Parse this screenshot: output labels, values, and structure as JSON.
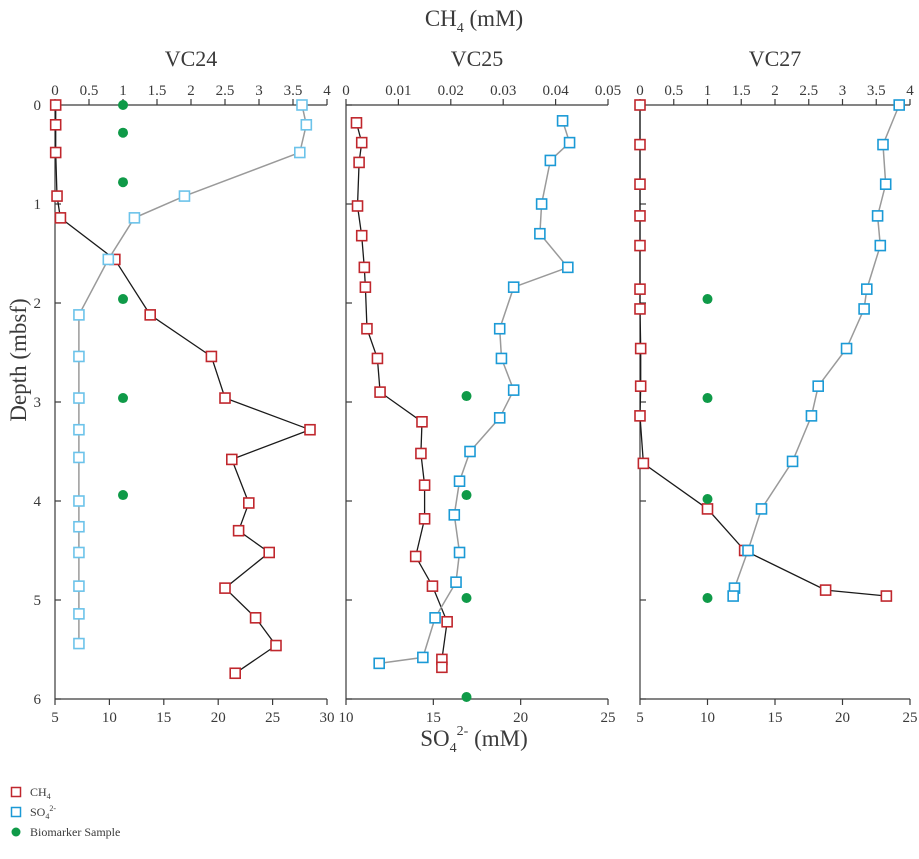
{
  "top_axis_title": "CH4 (mM)",
  "bottom_axis_title": "SO42- (mM)",
  "y_axis_title": "Depth (mbsf)",
  "legend": [
    {
      "key": "ch4",
      "label": "CH4"
    },
    {
      "key": "so4",
      "label": "SO42-"
    },
    {
      "key": "bio",
      "label": "Biomarker Sample"
    }
  ],
  "colors": {
    "ch4": "#c0272d",
    "so4_vc24": "#6cc3ea",
    "so4": "#1b9ad6",
    "bio": "#0f9a48",
    "ch4_line": "#1a1a1a",
    "so4_line": "#9a9a9a",
    "axis": "#3a3a3a"
  },
  "chart_data": [
    {
      "type": "scatter",
      "title": "VC24",
      "ylabel": "Depth (mbsf)",
      "ylim": [
        0,
        6
      ],
      "y_ticks": [
        0,
        1,
        2,
        3,
        4,
        5,
        6
      ],
      "y_reversed": true,
      "ch4_axis": {
        "range": [
          0,
          4
        ],
        "ticks": [
          0,
          0.5,
          1,
          1.5,
          2,
          2.5,
          3,
          3.5,
          4
        ],
        "tick_labels": [
          "0",
          "0.5",
          "1",
          "1.5",
          "2",
          "2.5",
          "3",
          "3.5",
          "4"
        ]
      },
      "so4_axis": {
        "range": [
          5,
          30
        ],
        "ticks": [
          5,
          10,
          15,
          20,
          25,
          30
        ],
        "tick_labels": [
          "5",
          "10",
          "15",
          "20",
          "25",
          "30"
        ]
      },
      "series": [
        {
          "name": "CH4",
          "axis": "ch4",
          "points": [
            [
              0.01,
              0.0
            ],
            [
              0.01,
              0.2
            ],
            [
              0.01,
              0.48
            ],
            [
              0.03,
              0.92
            ],
            [
              0.08,
              1.14
            ],
            [
              0.88,
              1.56
            ],
            [
              1.4,
              2.12
            ],
            [
              2.3,
              2.54
            ],
            [
              2.5,
              2.96
            ],
            [
              3.75,
              3.28
            ],
            [
              2.6,
              3.58
            ],
            [
              2.85,
              4.02
            ],
            [
              2.7,
              4.3
            ],
            [
              3.15,
              4.52
            ],
            [
              2.5,
              4.88
            ],
            [
              2.95,
              5.18
            ],
            [
              3.25,
              5.46
            ],
            [
              2.65,
              5.74
            ]
          ]
        },
        {
          "name": "SO42-",
          "axis": "so4",
          "points": [
            [
              27.7,
              0.0
            ],
            [
              28.1,
              0.2
            ],
            [
              27.5,
              0.48
            ],
            [
              16.9,
              0.92
            ],
            [
              12.3,
              1.14
            ],
            [
              9.9,
              1.56
            ],
            [
              7.2,
              2.12
            ],
            [
              7.2,
              2.54
            ],
            [
              7.2,
              2.96
            ],
            [
              7.2,
              3.28
            ],
            [
              7.2,
              3.56
            ],
            [
              7.2,
              4.0
            ],
            [
              7.2,
              4.26
            ],
            [
              7.2,
              4.52
            ],
            [
              7.2,
              4.86
            ],
            [
              7.2,
              5.14
            ],
            [
              7.2,
              5.44
            ]
          ]
        },
        {
          "name": "Biomarker Sample",
          "axis": "ch4",
          "points": [
            [
              1.0,
              0.0
            ],
            [
              1.0,
              0.28
            ],
            [
              1.0,
              0.78
            ],
            [
              1.0,
              1.96
            ],
            [
              1.0,
              2.96
            ],
            [
              1.0,
              3.94
            ]
          ]
        }
      ]
    },
    {
      "type": "scatter",
      "title": "VC25",
      "ylim": [
        0,
        6
      ],
      "y_reversed": true,
      "ch4_axis": {
        "range": [
          0,
          0.05
        ],
        "ticks": [
          0,
          0.01,
          0.02,
          0.03,
          0.04,
          0.05
        ],
        "tick_labels": [
          "0",
          "0.01",
          "0.02",
          "0.03",
          "0.04",
          "0.05"
        ]
      },
      "so4_axis": {
        "range": [
          10,
          25
        ],
        "ticks": [
          10,
          15,
          20,
          25
        ],
        "tick_labels": [
          "10",
          "15",
          "20",
          "25"
        ]
      },
      "series": [
        {
          "name": "CH4",
          "axis": "ch4",
          "points": [
            [
              0.002,
              0.18
            ],
            [
              0.003,
              0.38
            ],
            [
              0.0025,
              0.58
            ],
            [
              0.0022,
              1.02
            ],
            [
              0.003,
              1.32
            ],
            [
              0.0035,
              1.64
            ],
            [
              0.0037,
              1.84
            ],
            [
              0.004,
              2.26
            ],
            [
              0.006,
              2.56
            ],
            [
              0.0065,
              2.9
            ],
            [
              0.0145,
              3.2
            ],
            [
              0.0143,
              3.52
            ],
            [
              0.015,
              3.84
            ],
            [
              0.015,
              4.18
            ],
            [
              0.0133,
              4.56
            ],
            [
              0.0165,
              4.86
            ],
            [
              0.0193,
              5.22
            ],
            [
              0.0183,
              5.6
            ],
            [
              0.0183,
              5.68
            ]
          ]
        },
        {
          "name": "SO42-",
          "axis": "so4",
          "points": [
            [
              22.4,
              0.16
            ],
            [
              22.8,
              0.38
            ],
            [
              21.7,
              0.56
            ],
            [
              21.2,
              1.0
            ],
            [
              21.1,
              1.3
            ],
            [
              22.7,
              1.64
            ],
            [
              19.6,
              1.84
            ],
            [
              18.8,
              2.26
            ],
            [
              18.9,
              2.56
            ],
            [
              19.6,
              2.88
            ],
            [
              18.8,
              3.16
            ],
            [
              17.1,
              3.5
            ],
            [
              16.5,
              3.8
            ],
            [
              16.2,
              4.14
            ],
            [
              16.5,
              4.52
            ],
            [
              16.3,
              4.82
            ],
            [
              15.1,
              5.18
            ],
            [
              14.4,
              5.58
            ],
            [
              11.9,
              5.64
            ]
          ]
        },
        {
          "name": "Biomarker Sample",
          "axis": "ch4",
          "points": [
            [
              0.023,
              2.94
            ],
            [
              0.023,
              3.94
            ],
            [
              0.023,
              4.98
            ],
            [
              0.023,
              5.98
            ]
          ]
        }
      ]
    },
    {
      "type": "scatter",
      "title": "VC27",
      "ylim": [
        0,
        6
      ],
      "y_reversed": true,
      "ch4_axis": {
        "range": [
          0,
          4
        ],
        "ticks": [
          0,
          0.5,
          1,
          1.5,
          2,
          2.5,
          3,
          3.5,
          4
        ],
        "tick_labels": [
          "0",
          "0.5",
          "1",
          "1.5",
          "2",
          "2.5",
          "3",
          "3.5",
          "4"
        ]
      },
      "so4_axis": {
        "range": [
          5,
          25
        ],
        "ticks": [
          5,
          10,
          15,
          20,
          25
        ],
        "tick_labels": [
          "5",
          "10",
          "15",
          "20",
          "25"
        ]
      },
      "series": [
        {
          "name": "CH4",
          "axis": "ch4",
          "points": [
            [
              0.0,
              0.0
            ],
            [
              0.0,
              0.4
            ],
            [
              0.0,
              0.8
            ],
            [
              0.0,
              1.12
            ],
            [
              0.0,
              1.42
            ],
            [
              0.0,
              1.86
            ],
            [
              0.0,
              2.06
            ],
            [
              0.01,
              2.46
            ],
            [
              0.01,
              2.84
            ],
            [
              0.0,
              3.14
            ],
            [
              0.05,
              3.62
            ],
            [
              1.0,
              4.08
            ],
            [
              1.55,
              4.5
            ],
            [
              2.75,
              4.9
            ],
            [
              3.65,
              4.96
            ]
          ]
        },
        {
          "name": "SO42-",
          "axis": "so4",
          "points": [
            [
              24.2,
              0.0
            ],
            [
              23.0,
              0.4
            ],
            [
              23.2,
              0.8
            ],
            [
              22.6,
              1.12
            ],
            [
              22.8,
              1.42
            ],
            [
              21.8,
              1.86
            ],
            [
              21.6,
              2.06
            ],
            [
              20.3,
              2.46
            ],
            [
              18.2,
              2.84
            ],
            [
              17.7,
              3.14
            ],
            [
              16.3,
              3.6
            ],
            [
              14.0,
              4.08
            ],
            [
              13.0,
              4.5
            ],
            [
              12.0,
              4.88
            ],
            [
              11.9,
              4.96
            ]
          ]
        },
        {
          "name": "Biomarker Sample",
          "axis": "ch4",
          "points": [
            [
              1.0,
              1.96
            ],
            [
              1.0,
              2.96
            ],
            [
              1.0,
              3.98
            ],
            [
              1.0,
              4.98
            ]
          ]
        }
      ]
    }
  ]
}
